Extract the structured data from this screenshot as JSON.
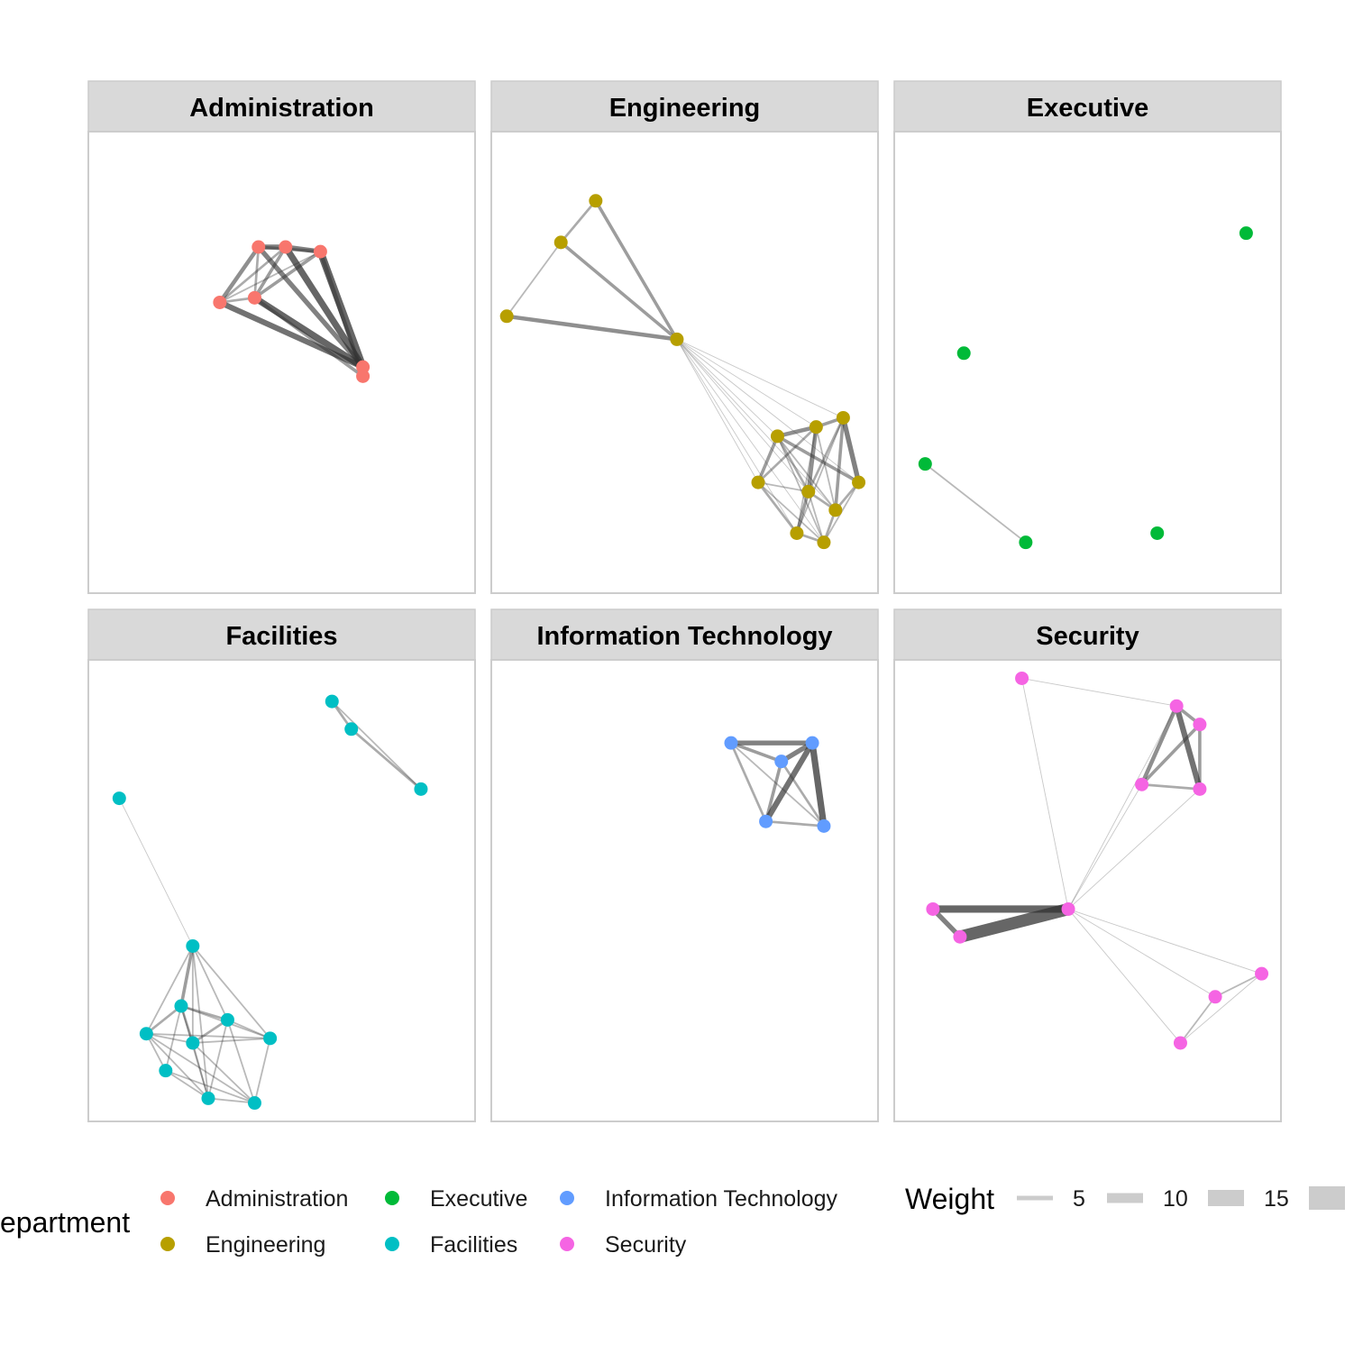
{
  "chart_data": {
    "type": "network",
    "facet_by": "Department",
    "panels": [
      {
        "title": "Administration",
        "color": "#F8766D",
        "nodes": [
          [
            0.44,
            0.25
          ],
          [
            0.51,
            0.25
          ],
          [
            0.6,
            0.26
          ],
          [
            0.34,
            0.37
          ],
          [
            0.43,
            0.36
          ],
          [
            0.71,
            0.51
          ],
          [
            0.71,
            0.53
          ]
        ],
        "edges": [
          [
            0,
            1,
            6
          ],
          [
            1,
            2,
            6
          ],
          [
            0,
            2,
            4
          ],
          [
            0,
            3,
            5
          ],
          [
            0,
            4,
            3
          ],
          [
            1,
            3,
            3
          ],
          [
            1,
            4,
            4
          ],
          [
            2,
            3,
            2
          ],
          [
            2,
            4,
            4
          ],
          [
            3,
            4,
            3
          ],
          [
            0,
            5,
            6
          ],
          [
            1,
            5,
            8
          ],
          [
            2,
            5,
            9
          ],
          [
            3,
            5,
            7
          ],
          [
            4,
            5,
            8
          ],
          [
            5,
            6,
            3
          ],
          [
            2,
            6,
            5
          ],
          [
            4,
            6,
            4
          ]
        ]
      },
      {
        "title": "Engineering",
        "color": "#B79F00",
        "nodes": [
          [
            0.27,
            0.15
          ],
          [
            0.18,
            0.24
          ],
          [
            0.04,
            0.4
          ],
          [
            0.48,
            0.45
          ],
          [
            0.74,
            0.66
          ],
          [
            0.84,
            0.64
          ],
          [
            0.91,
            0.62
          ],
          [
            0.69,
            0.76
          ],
          [
            0.82,
            0.78
          ],
          [
            0.95,
            0.76
          ],
          [
            0.89,
            0.82
          ],
          [
            0.79,
            0.87
          ],
          [
            0.86,
            0.89
          ]
        ],
        "edges": [
          [
            0,
            1,
            3
          ],
          [
            0,
            3,
            4
          ],
          [
            1,
            3,
            4
          ],
          [
            1,
            2,
            2
          ],
          [
            2,
            3,
            5
          ],
          [
            3,
            4,
            1
          ],
          [
            3,
            5,
            1
          ],
          [
            3,
            6,
            1
          ],
          [
            3,
            7,
            1
          ],
          [
            3,
            8,
            1
          ],
          [
            3,
            9,
            1
          ],
          [
            3,
            10,
            1
          ],
          [
            3,
            11,
            1
          ],
          [
            3,
            12,
            1
          ],
          [
            4,
            5,
            5
          ],
          [
            5,
            6,
            4
          ],
          [
            4,
            7,
            4
          ],
          [
            4,
            8,
            3
          ],
          [
            5,
            8,
            5
          ],
          [
            6,
            9,
            6
          ],
          [
            6,
            10,
            4
          ],
          [
            8,
            10,
            3
          ],
          [
            7,
            11,
            3
          ],
          [
            8,
            11,
            4
          ],
          [
            10,
            12,
            3
          ],
          [
            11,
            12,
            3
          ],
          [
            4,
            9,
            4
          ],
          [
            5,
            7,
            3
          ],
          [
            6,
            8,
            3
          ],
          [
            7,
            8,
            2
          ],
          [
            9,
            10,
            3
          ],
          [
            4,
            12,
            2
          ],
          [
            5,
            11,
            2
          ],
          [
            7,
            12,
            2
          ],
          [
            8,
            12,
            2
          ],
          [
            5,
            10,
            2
          ],
          [
            6,
            11,
            2
          ],
          [
            9,
            12,
            2
          ],
          [
            4,
            10,
            2
          ]
        ]
      },
      {
        "title": "Executive",
        "color": "#00BA38",
        "nodes": [
          [
            0.91,
            0.22
          ],
          [
            0.18,
            0.48
          ],
          [
            0.08,
            0.72
          ],
          [
            0.34,
            0.89
          ],
          [
            0.68,
            0.87
          ]
        ],
        "edges": [
          [
            2,
            3,
            2
          ]
        ]
      },
      {
        "title": "Facilities",
        "color": "#00BFC4",
        "nodes": [
          [
            0.63,
            0.09
          ],
          [
            0.68,
            0.15
          ],
          [
            0.86,
            0.28
          ],
          [
            0.08,
            0.3
          ],
          [
            0.27,
            0.62
          ],
          [
            0.24,
            0.75
          ],
          [
            0.36,
            0.78
          ],
          [
            0.15,
            0.81
          ],
          [
            0.27,
            0.83
          ],
          [
            0.47,
            0.82
          ],
          [
            0.2,
            0.89
          ],
          [
            0.31,
            0.95
          ],
          [
            0.43,
            0.96
          ]
        ],
        "edges": [
          [
            0,
            1,
            3
          ],
          [
            1,
            2,
            3
          ],
          [
            0,
            2,
            2
          ],
          [
            3,
            4,
            1
          ],
          [
            4,
            5,
            4
          ],
          [
            4,
            6,
            2
          ],
          [
            4,
            7,
            2
          ],
          [
            4,
            8,
            2
          ],
          [
            4,
            9,
            2
          ],
          [
            4,
            11,
            2
          ],
          [
            5,
            6,
            3
          ],
          [
            5,
            7,
            3
          ],
          [
            5,
            8,
            3
          ],
          [
            6,
            8,
            3
          ],
          [
            6,
            9,
            2
          ],
          [
            7,
            8,
            2
          ],
          [
            7,
            10,
            2
          ],
          [
            8,
            11,
            2
          ],
          [
            9,
            12,
            2
          ],
          [
            11,
            12,
            2
          ],
          [
            7,
            12,
            2
          ],
          [
            10,
            12,
            2
          ],
          [
            5,
            10,
            2
          ],
          [
            8,
            12,
            2
          ],
          [
            6,
            11,
            2
          ],
          [
            7,
            11,
            2
          ],
          [
            5,
            9,
            2
          ],
          [
            6,
            12,
            2
          ],
          [
            10,
            11,
            2
          ],
          [
            8,
            9,
            2
          ],
          [
            5,
            11,
            2
          ],
          [
            7,
            9,
            2
          ]
        ]
      },
      {
        "title": "Information Technology",
        "color": "#619CFF",
        "nodes": [
          [
            0.62,
            0.18
          ],
          [
            0.83,
            0.18
          ],
          [
            0.75,
            0.22
          ],
          [
            0.71,
            0.35
          ],
          [
            0.86,
            0.36
          ]
        ],
        "edges": [
          [
            0,
            1,
            6
          ],
          [
            0,
            2,
            4
          ],
          [
            1,
            2,
            6
          ],
          [
            1,
            3,
            7
          ],
          [
            1,
            4,
            8
          ],
          [
            2,
            3,
            4
          ],
          [
            2,
            4,
            3
          ],
          [
            3,
            4,
            3
          ],
          [
            0,
            3,
            3
          ],
          [
            0,
            4,
            2
          ]
        ]
      },
      {
        "title": "Security",
        "color": "#F564E3",
        "nodes": [
          [
            0.33,
            0.04
          ],
          [
            0.73,
            0.1
          ],
          [
            0.79,
            0.14
          ],
          [
            0.64,
            0.27
          ],
          [
            0.79,
            0.28
          ],
          [
            0.1,
            0.54
          ],
          [
            0.17,
            0.6
          ],
          [
            0.45,
            0.54
          ],
          [
            0.95,
            0.68
          ],
          [
            0.83,
            0.73
          ],
          [
            0.74,
            0.83
          ]
        ],
        "edges": [
          [
            0,
            1,
            1
          ],
          [
            0,
            7,
            1
          ],
          [
            1,
            2,
            4
          ],
          [
            1,
            3,
            5
          ],
          [
            2,
            3,
            4
          ],
          [
            1,
            4,
            7
          ],
          [
            2,
            4,
            4
          ],
          [
            3,
            4,
            3
          ],
          [
            3,
            7,
            1
          ],
          [
            4,
            7,
            1
          ],
          [
            1,
            7,
            1
          ],
          [
            5,
            6,
            6
          ],
          [
            5,
            7,
            9
          ],
          [
            6,
            7,
            15
          ],
          [
            7,
            8,
            1
          ],
          [
            7,
            9,
            1
          ],
          [
            7,
            10,
            1
          ],
          [
            8,
            9,
            2
          ],
          [
            9,
            10,
            2
          ],
          [
            8,
            10,
            1
          ]
        ]
      }
    ],
    "legend": {
      "title": "epartment",
      "items": [
        {
          "name": "Administration",
          "color": "#F8766D"
        },
        {
          "name": "Engineering",
          "color": "#B79F00"
        },
        {
          "name": "Executive",
          "color": "#00BA38"
        },
        {
          "name": "Facilities",
          "color": "#00BFC4"
        },
        {
          "name": "Information Technology",
          "color": "#619CFF"
        },
        {
          "name": "Security",
          "color": "#F564E3"
        }
      ]
    },
    "size_legend": {
      "title": "Weight",
      "values": [
        "5",
        "10",
        "15",
        ""
      ]
    }
  }
}
